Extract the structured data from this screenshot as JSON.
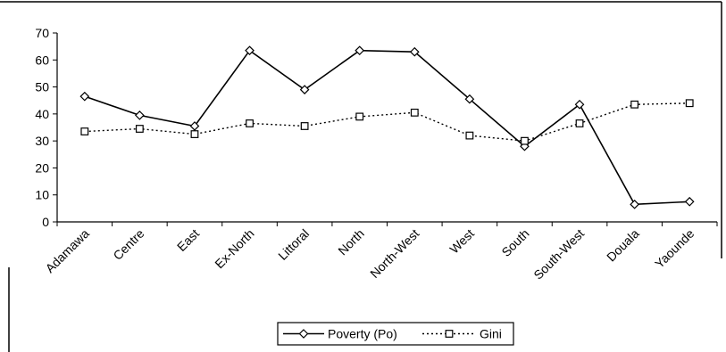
{
  "chart_data": {
    "type": "line",
    "categories": [
      "Adamawa",
      "Centre",
      "East",
      "Ex-North",
      "Littoral",
      "North",
      "North-West",
      "West",
      "South",
      "South-West",
      "Douala",
      "Yaounde"
    ],
    "series": [
      {
        "name": "Poverty (Po)",
        "values": [
          46.5,
          39.5,
          35.5,
          63.5,
          49,
          63.5,
          63,
          45.5,
          28,
          43.5,
          6.5,
          7.5
        ],
        "line_style": "solid",
        "marker": "diamond",
        "color": "#000000"
      },
      {
        "name": "Gini",
        "values": [
          33.5,
          34.5,
          32.5,
          36.5,
          35.5,
          39,
          40.5,
          32,
          30,
          36.5,
          43.5,
          44
        ],
        "line_style": "dotted",
        "marker": "square",
        "color": "#000000"
      }
    ],
    "title": "",
    "xlabel": "",
    "ylabel": "",
    "ylim": [
      0,
      70
    ],
    "yticks": [
      0,
      10,
      20,
      30,
      40,
      50,
      60,
      70
    ],
    "grid": false,
    "legend_position": "bottom"
  }
}
